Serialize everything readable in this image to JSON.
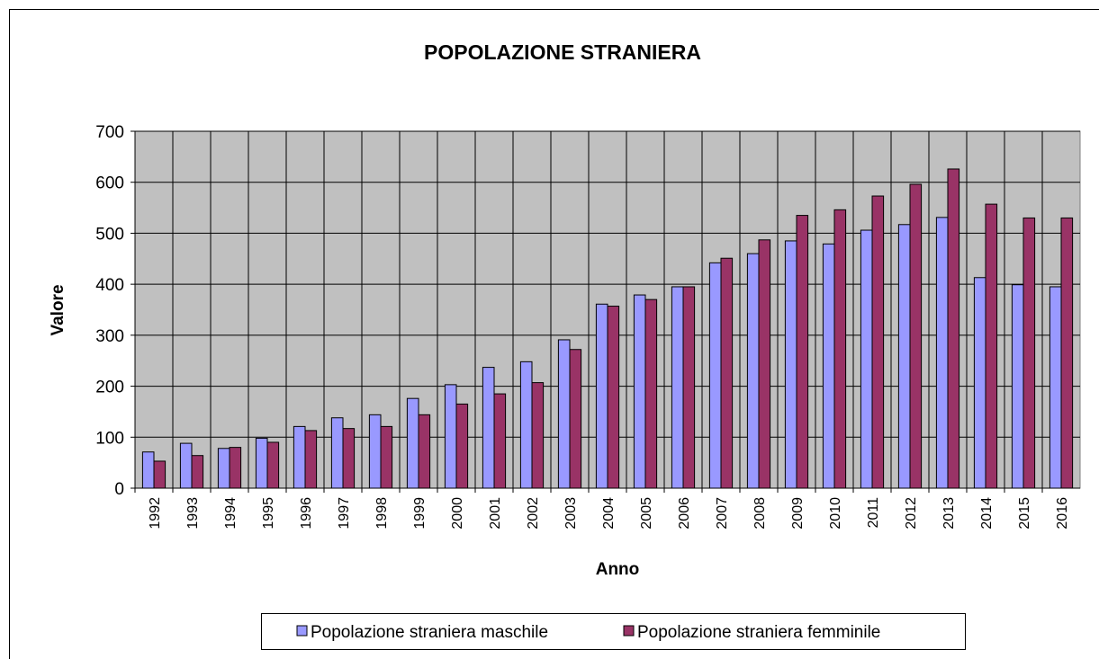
{
  "chart_data": {
    "type": "bar",
    "title": "POPOLAZIONE STRANIERA",
    "x_label": "Anno",
    "y_label": "Valore",
    "categories": [
      "1992",
      "1993",
      "1994",
      "1995",
      "1996",
      "1997",
      "1998",
      "1999",
      "2000",
      "2001",
      "2002",
      "2003",
      "2004",
      "2005",
      "2006",
      "2007",
      "2008",
      "2009",
      "2010",
      "2011",
      "2012",
      "2013",
      "2014",
      "2015",
      "2016"
    ],
    "series": [
      {
        "name": "Popolazione straniera maschile",
        "color": "#9999ff",
        "values": [
          71,
          88,
          78,
          98,
          121,
          138,
          144,
          176,
          203,
          237,
          248,
          291,
          361,
          379,
          395,
          442,
          460,
          485,
          479,
          506,
          517,
          531,
          413,
          399,
          395
        ]
      },
      {
        "name": "Popolazione straniera femminile",
        "color": "#993366",
        "values": [
          53,
          64,
          80,
          90,
          113,
          117,
          121,
          144,
          165,
          185,
          207,
          272,
          357,
          370,
          395,
          451,
          487,
          535,
          546,
          573,
          596,
          626,
          557,
          530,
          530
        ]
      }
    ],
    "ylim": [
      0,
      700
    ],
    "yticks": [
      0,
      100,
      200,
      300,
      400,
      500,
      600,
      700
    ],
    "grid": true,
    "legend": "bottom"
  }
}
